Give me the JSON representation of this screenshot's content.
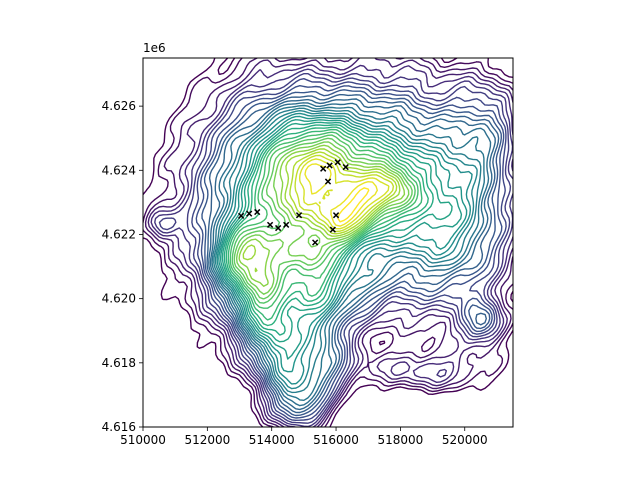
{
  "chart_data": {
    "type": "contour",
    "title": "",
    "xlabel": "",
    "ylabel": "",
    "xlim": [
      510000,
      521500
    ],
    "ylim": [
      4616000,
      4627500
    ],
    "y_offset_label": "1e6",
    "x_ticks": [
      {
        "value": 510000,
        "label": "510000"
      },
      {
        "value": 512000,
        "label": "512000"
      },
      {
        "value": 514000,
        "label": "514000"
      },
      {
        "value": 516000,
        "label": "516000"
      },
      {
        "value": 518000,
        "label": "518000"
      },
      {
        "value": 520000,
        "label": "520000"
      }
    ],
    "y_ticks": [
      {
        "value": 4616000,
        "label": "4.616"
      },
      {
        "value": 4618000,
        "label": "4.618"
      },
      {
        "value": 4620000,
        "label": "4.620"
      },
      {
        "value": 4622000,
        "label": "4.622"
      },
      {
        "value": 4624000,
        "label": "4.624"
      },
      {
        "value": 4626000,
        "label": "4.626"
      }
    ],
    "colormap": [
      "#440154",
      "#472d7b",
      "#3b528b",
      "#2c728e",
      "#21918c",
      "#28ae80",
      "#5ec962",
      "#addc30",
      "#fde725"
    ],
    "markers": {
      "symbol": "x",
      "color": "#000000",
      "points": [
        [
          513050,
          4622580
        ],
        [
          513300,
          4622650
        ],
        [
          513550,
          4622700
        ],
        [
          513950,
          4622300
        ],
        [
          514200,
          4622200
        ],
        [
          514450,
          4622300
        ],
        [
          514850,
          4622600
        ],
        [
          515350,
          4621750
        ],
        [
          515600,
          4624050
        ],
        [
          515800,
          4624150
        ],
        [
          516050,
          4624250
        ],
        [
          516300,
          4624100
        ],
        [
          515750,
          4623650
        ],
        [
          516000,
          4622600
        ],
        [
          515900,
          4622150
        ]
      ]
    }
  }
}
